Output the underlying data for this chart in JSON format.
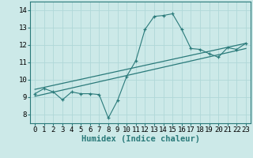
{
  "title": "",
  "xlabel": "Humidex (Indice chaleur)",
  "ylabel": "",
  "bg_color": "#cce9e8",
  "line_color": "#2a7a7a",
  "grid_color": "#b0d8d8",
  "xlim": [
    -0.5,
    23.5
  ],
  "ylim": [
    7.5,
    14.5
  ],
  "xticks": [
    0,
    1,
    2,
    3,
    4,
    5,
    6,
    7,
    8,
    9,
    10,
    11,
    12,
    13,
    14,
    15,
    16,
    17,
    18,
    19,
    20,
    21,
    22,
    23
  ],
  "yticks": [
    8,
    9,
    10,
    11,
    12,
    13,
    14
  ],
  "scatter_x": [
    0,
    1,
    2,
    3,
    4,
    5,
    6,
    7,
    8,
    9,
    10,
    11,
    12,
    13,
    14,
    15,
    16,
    17,
    18,
    19,
    20,
    21,
    22,
    23
  ],
  "scatter_y": [
    9.2,
    9.5,
    9.3,
    8.85,
    9.3,
    9.2,
    9.2,
    9.15,
    7.8,
    8.8,
    10.2,
    11.1,
    12.9,
    13.65,
    13.7,
    13.8,
    12.9,
    11.8,
    11.75,
    11.5,
    11.3,
    11.85,
    11.75,
    12.1
  ],
  "trend1_x": [
    0,
    23
  ],
  "trend1_y": [
    9.05,
    11.8
  ],
  "trend2_x": [
    0,
    23
  ],
  "trend2_y": [
    9.45,
    12.1
  ],
  "tick_fontsize": 6.5,
  "label_fontsize": 7.5
}
